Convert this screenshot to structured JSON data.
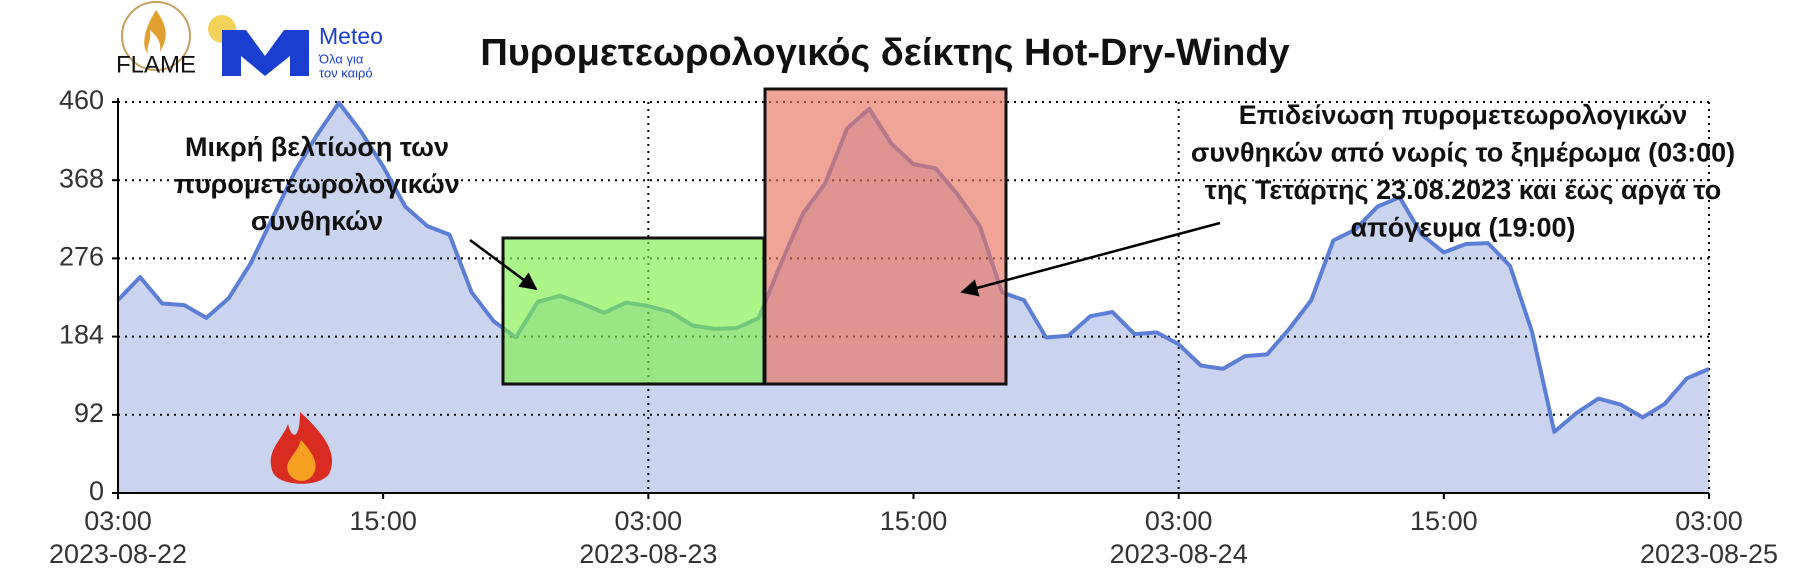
{
  "logos": {
    "flame": "FLAME",
    "meteo": "Meteo",
    "meteo_tagline": [
      "Όλα για",
      "τον καιρό"
    ]
  },
  "chart_data": {
    "type": "line",
    "title": "Πυρομετεωρολογικός δείκτης Hot-Dry-Windy",
    "x": [
      "2023-08-22 03:00",
      "2023-08-22 04:00",
      "2023-08-22 05:00",
      "2023-08-22 06:00",
      "2023-08-22 07:00",
      "2023-08-22 08:00",
      "2023-08-22 09:00",
      "2023-08-22 10:00",
      "2023-08-22 11:00",
      "2023-08-22 12:00",
      "2023-08-22 13:00",
      "2023-08-22 14:00",
      "2023-08-22 15:00",
      "2023-08-22 16:00",
      "2023-08-22 17:00",
      "2023-08-22 18:00",
      "2023-08-22 19:00",
      "2023-08-22 20:00",
      "2023-08-22 21:00",
      "2023-08-22 22:00",
      "2023-08-22 23:00",
      "2023-08-23 00:00",
      "2023-08-23 01:00",
      "2023-08-23 02:00",
      "2023-08-23 03:00",
      "2023-08-23 04:00",
      "2023-08-23 05:00",
      "2023-08-23 06:00",
      "2023-08-23 07:00",
      "2023-08-23 08:00",
      "2023-08-23 09:00",
      "2023-08-23 10:00",
      "2023-08-23 11:00",
      "2023-08-23 12:00",
      "2023-08-23 13:00",
      "2023-08-23 14:00",
      "2023-08-23 15:00",
      "2023-08-23 16:00",
      "2023-08-23 17:00",
      "2023-08-23 18:00",
      "2023-08-23 19:00",
      "2023-08-23 20:00",
      "2023-08-23 21:00",
      "2023-08-23 22:00",
      "2023-08-23 23:00",
      "2023-08-24 00:00",
      "2023-08-24 01:00",
      "2023-08-24 02:00",
      "2023-08-24 03:00",
      "2023-08-24 04:00",
      "2023-08-24 05:00",
      "2023-08-24 06:00",
      "2023-08-24 07:00",
      "2023-08-24 08:00",
      "2023-08-24 09:00",
      "2023-08-24 10:00",
      "2023-08-24 11:00",
      "2023-08-24 12:00",
      "2023-08-24 13:00",
      "2023-08-24 14:00",
      "2023-08-24 15:00",
      "2023-08-24 16:00",
      "2023-08-24 17:00",
      "2023-08-24 18:00",
      "2023-08-24 19:00",
      "2023-08-24 20:00",
      "2023-08-24 21:00",
      "2023-08-24 22:00",
      "2023-08-24 23:00",
      "2023-08-25 00:00",
      "2023-08-25 01:00",
      "2023-08-25 02:00",
      "2023-08-25 03:00"
    ],
    "values": [
      227,
      254,
      223,
      221,
      206,
      229,
      270,
      324,
      378,
      421,
      459,
      425,
      384,
      337,
      314,
      304,
      236,
      202,
      183,
      225,
      232,
      223,
      212,
      224,
      220,
      213,
      197,
      193,
      194,
      206,
      270,
      329,
      364,
      429,
      452,
      411,
      387,
      382,
      351,
      314,
      236,
      227,
      183,
      185,
      208,
      213,
      187,
      189,
      175,
      150,
      146,
      161,
      163,
      193,
      227,
      297,
      310,
      337,
      348,
      304,
      283,
      293,
      294,
      267,
      189,
      72,
      94,
      111,
      104,
      89,
      105,
      135,
      146
    ],
    "color": "#5b7fd6",
    "fill_color": "#cbd4ef",
    "xlim": [
      "2023-08-22 03:00",
      "2023-08-25 03:00"
    ],
    "xticks": [
      {
        "value": "2023-08-22 03:00",
        "label": [
          "03:00",
          "2023-08-22"
        ]
      },
      {
        "value": "2023-08-22 15:00",
        "label": [
          "15:00"
        ]
      },
      {
        "value": "2023-08-23 03:00",
        "label": [
          "03:00",
          "2023-08-23"
        ]
      },
      {
        "value": "2023-08-23 15:00",
        "label": [
          "15:00"
        ]
      },
      {
        "value": "2023-08-24 03:00",
        "label": [
          "03:00",
          "2023-08-24"
        ]
      },
      {
        "value": "2023-08-24 15:00",
        "label": [
          "15:00"
        ]
      },
      {
        "value": "2023-08-25 03:00",
        "label": [
          "03:00",
          "2023-08-25"
        ]
      }
    ],
    "ylim": [
      0,
      460
    ],
    "yticks": [
      0,
      92,
      184,
      276,
      368,
      460
    ],
    "grid": true,
    "annotations": [
      {
        "text": [
          "Μικρή βελτίωση των",
          "πυρομετεωρολογικών",
          "συνθηκών"
        ],
        "color": "#7ef04a"
      },
      {
        "text": [
          "Επιδείνωση πυρομετεωρολογικών",
          "συνθηκών από νωρίς το ξημέρωμα (03:00)",
          "της Τετάρτης 23.08.2023 και έως αργά το",
          "απόγευμα (19:00)"
        ],
        "color": "#e8735f"
      }
    ]
  }
}
